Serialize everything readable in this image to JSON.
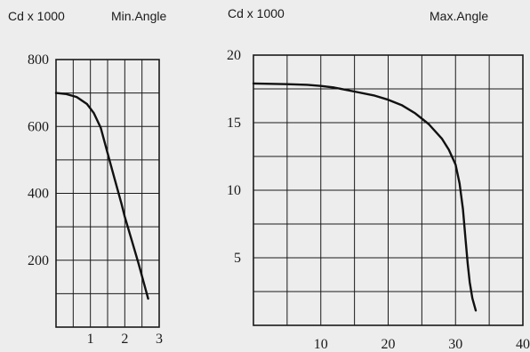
{
  "chart_data": [
    {
      "type": "line",
      "title": "Min.Angle",
      "ylabel": "Cd x 1000",
      "xlabel": "",
      "xlim": [
        0,
        3
      ],
      "ylim": [
        0,
        800
      ],
      "xticks": [
        1,
        2,
        3
      ],
      "yticks": [
        200,
        400,
        600,
        800
      ],
      "grid": true,
      "series": [
        {
          "x": [
            0,
            0.3,
            0.6,
            0.9,
            1.1,
            1.3,
            1.5,
            1.7,
            1.9,
            2.0,
            2.2,
            2.4,
            2.6,
            2.68
          ],
          "y": [
            700,
            697,
            688,
            667,
            640,
            596,
            520,
            445,
            370,
            330,
            260,
            190,
            115,
            85
          ]
        }
      ]
    },
    {
      "type": "line",
      "title": "Max.Angle",
      "ylabel": "Cd x 1000",
      "xlabel": "",
      "xlim": [
        0,
        40
      ],
      "ylim": [
        0,
        20
      ],
      "xticks": [
        10,
        20,
        30,
        40
      ],
      "yticks": [
        5,
        10,
        15,
        20
      ],
      "grid": true,
      "series": [
        {
          "x": [
            0,
            5,
            8,
            10,
            12,
            15,
            18,
            20,
            22,
            24,
            26,
            28,
            29,
            30,
            30.6,
            31.1,
            31.5,
            31.8,
            32.1,
            32.5,
            33
          ],
          "y": [
            17.9,
            17.85,
            17.8,
            17.72,
            17.6,
            17.3,
            17.0,
            16.7,
            16.3,
            15.7,
            14.9,
            13.8,
            13.0,
            11.9,
            10.5,
            8.6,
            6.3,
            4.6,
            3.2,
            2.0,
            1.1
          ]
        }
      ]
    }
  ]
}
